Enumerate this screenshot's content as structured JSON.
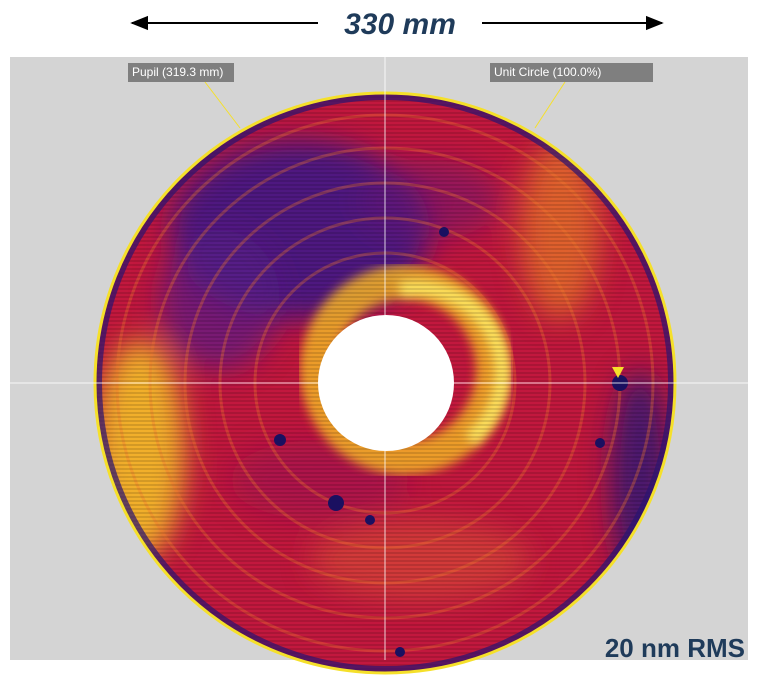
{
  "header": {
    "dimension": "330 mm"
  },
  "labels": {
    "pupil": "Pupil (319.3 mm)",
    "unit_circle": "Unit Circle (100.0%)"
  },
  "footer": {
    "rms": "20 nm RMS"
  }
}
